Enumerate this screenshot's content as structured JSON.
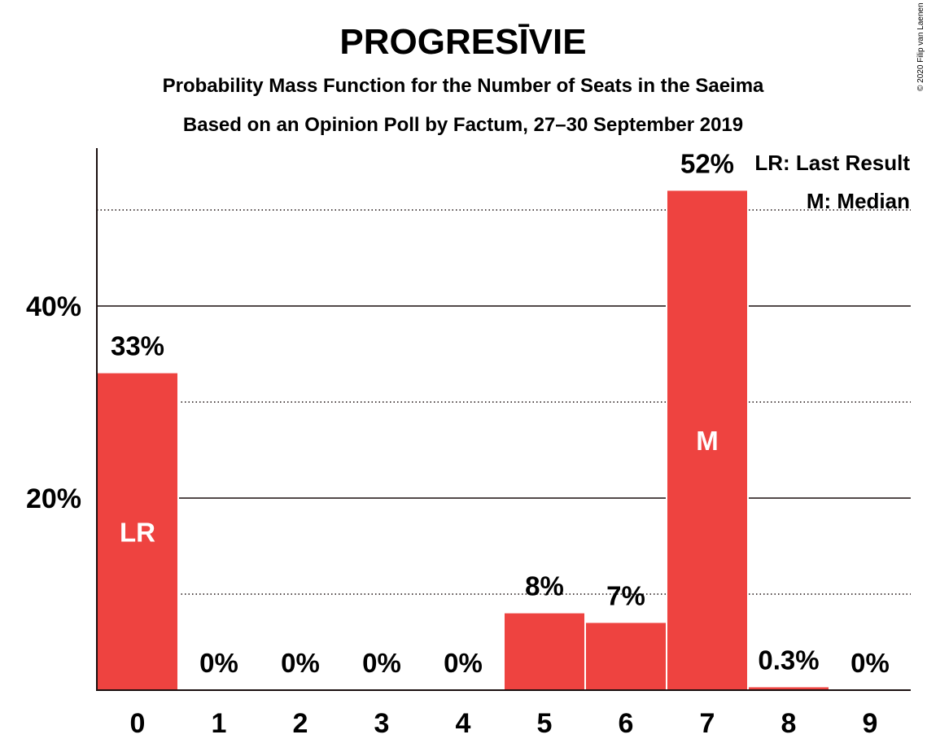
{
  "chart_data": {
    "type": "bar",
    "title": "PROGRESĪVIE",
    "subtitle": "Probability Mass Function for the Number of Seats in the Saeima",
    "subtitle2": "Based on an Opinion Poll by Factum, 27–30 September 2019",
    "categories": [
      "0",
      "1",
      "2",
      "3",
      "4",
      "5",
      "6",
      "7",
      "8",
      "9"
    ],
    "values": [
      33,
      0,
      0,
      0,
      0,
      8,
      7,
      52,
      0.3,
      0
    ],
    "value_labels": [
      "33%",
      "0%",
      "0%",
      "0%",
      "0%",
      "8%",
      "7%",
      "52%",
      "0.3%",
      "0%"
    ],
    "bar_markers": [
      "LR",
      "",
      "",
      "",
      "",
      "",
      "",
      "M",
      "",
      ""
    ],
    "yticks": [
      "20%",
      "40%"
    ],
    "ytick_values": [
      20,
      40
    ],
    "ylim": [
      0,
      56
    ],
    "grid": "solid at labelled ticks, dotted at 10% steps",
    "legend": [
      "LR: Last Result",
      "M: Median"
    ],
    "legend_position": "top-right",
    "copyright": "© 2020 Filip van Laenen",
    "bar_color": "#ee4340"
  }
}
